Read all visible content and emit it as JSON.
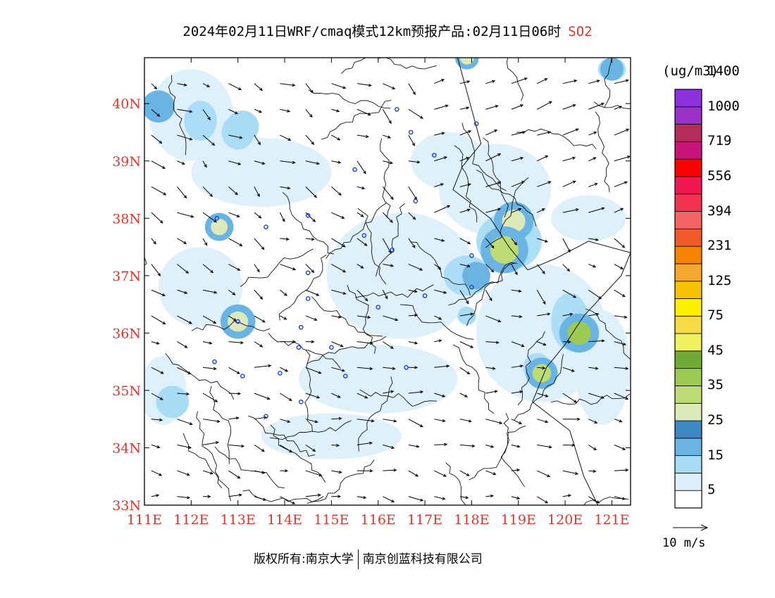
{
  "title": {
    "text": "2024年02月11日WRF/cmaq模式12km预报产品:02月11日06时",
    "pollutant": "SO2",
    "pollutant_color": "#e8332c"
  },
  "axes": {
    "lon_ticks": [
      "111E",
      "112E",
      "113E",
      "114E",
      "115E",
      "116E",
      "117E",
      "118E",
      "119E",
      "120E",
      "121E"
    ],
    "lat_ticks": [
      "40N",
      "39N",
      "38N",
      "37N",
      "36N",
      "35N",
      "34N",
      "33N"
    ],
    "lon_range": [
      111,
      121.4
    ],
    "lat_range": [
      33,
      40.8
    ],
    "tick_color": "#e8332c"
  },
  "legend": {
    "unit": "(ug/m3)",
    "colors": [
      "#ffffff",
      "#dcf0fb",
      "#a8dcf5",
      "#6ab4e4",
      "#3c87c4",
      "#dce9b8",
      "#bddc76",
      "#9dca52",
      "#72aa38",
      "#eef060",
      "#f5dc46",
      "#fff000",
      "#f7c300",
      "#f5a82e",
      "#f58300",
      "#ef5a28",
      "#f56464",
      "#f53250",
      "#f01650",
      "#ff0000",
      "#c8147a",
      "#b42d5a",
      "#9b32c8",
      "#8c32dc"
    ],
    "labels": [
      "5",
      "15",
      "25",
      "35",
      "45",
      "75",
      "125",
      "231",
      "394",
      "556",
      "719",
      "1000",
      "1400"
    ]
  },
  "vector_reference": "10 m/s",
  "footer": {
    "left": "版权所有:南京大学",
    "right": "南京创蓝科技有限公司"
  },
  "map_features": {
    "so2_patches": [
      {
        "lon": 111.3,
        "lat": 39.95,
        "r": 0.35,
        "level": 3
      },
      {
        "lon": 112.6,
        "lat": 37.85,
        "r": 0.18,
        "level": 5
      },
      {
        "lon": 113.0,
        "lat": 36.2,
        "r": 0.22,
        "level": 5
      },
      {
        "lon": 118.9,
        "lat": 37.95,
        "r": 0.25,
        "level": 5
      },
      {
        "lon": 118.7,
        "lat": 37.45,
        "r": 0.3,
        "level": 6
      },
      {
        "lon": 120.3,
        "lat": 36.0,
        "r": 0.25,
        "level": 7
      },
      {
        "lon": 119.5,
        "lat": 35.3,
        "r": 0.2,
        "level": 6
      },
      {
        "lon": 117.9,
        "lat": 40.8,
        "r": 0.15,
        "level": 5
      },
      {
        "lon": 121.0,
        "lat": 40.6,
        "r": 0.25,
        "level": 3
      },
      {
        "lon": 118.1,
        "lat": 37.0,
        "r": 0.3,
        "level": 3
      },
      {
        "lon": 117.9,
        "lat": 36.3,
        "r": 0.2,
        "level": 2
      },
      {
        "lon": 113.1,
        "lat": 39.6,
        "r": 0.35,
        "level": 2
      },
      {
        "lon": 111.6,
        "lat": 34.8,
        "r": 0.35,
        "level": 2
      }
    ],
    "city_markers": [
      {
        "lon": 116.4,
        "lat": 39.9
      },
      {
        "lon": 116.7,
        "lat": 39.5
      },
      {
        "lon": 117.2,
        "lat": 39.1
      },
      {
        "lon": 118.1,
        "lat": 39.65
      },
      {
        "lon": 115.5,
        "lat": 38.85
      },
      {
        "lon": 116.8,
        "lat": 38.3
      },
      {
        "lon": 115.7,
        "lat": 37.7
      },
      {
        "lon": 114.5,
        "lat": 38.05
      },
      {
        "lon": 113.6,
        "lat": 37.85
      },
      {
        "lon": 112.55,
        "lat": 38.0
      },
      {
        "lon": 116.3,
        "lat": 37.45
      },
      {
        "lon": 117.0,
        "lat": 36.65
      },
      {
        "lon": 118.0,
        "lat": 37.35
      },
      {
        "lon": 118.0,
        "lat": 36.8
      },
      {
        "lon": 114.5,
        "lat": 37.05
      },
      {
        "lon": 114.5,
        "lat": 36.6
      },
      {
        "lon": 114.35,
        "lat": 36.1
      },
      {
        "lon": 114.3,
        "lat": 35.75
      },
      {
        "lon": 115.0,
        "lat": 35.75
      },
      {
        "lon": 116.0,
        "lat": 36.45
      },
      {
        "lon": 115.3,
        "lat": 35.25
      },
      {
        "lon": 116.6,
        "lat": 35.4
      },
      {
        "lon": 113.9,
        "lat": 35.3
      },
      {
        "lon": 113.1,
        "lat": 35.25
      },
      {
        "lon": 112.5,
        "lat": 35.5
      },
      {
        "lon": 113.6,
        "lat": 34.55
      },
      {
        "lon": 114.35,
        "lat": 34.8
      },
      {
        "lon": 113.0,
        "lat": 36.2
      }
    ]
  }
}
